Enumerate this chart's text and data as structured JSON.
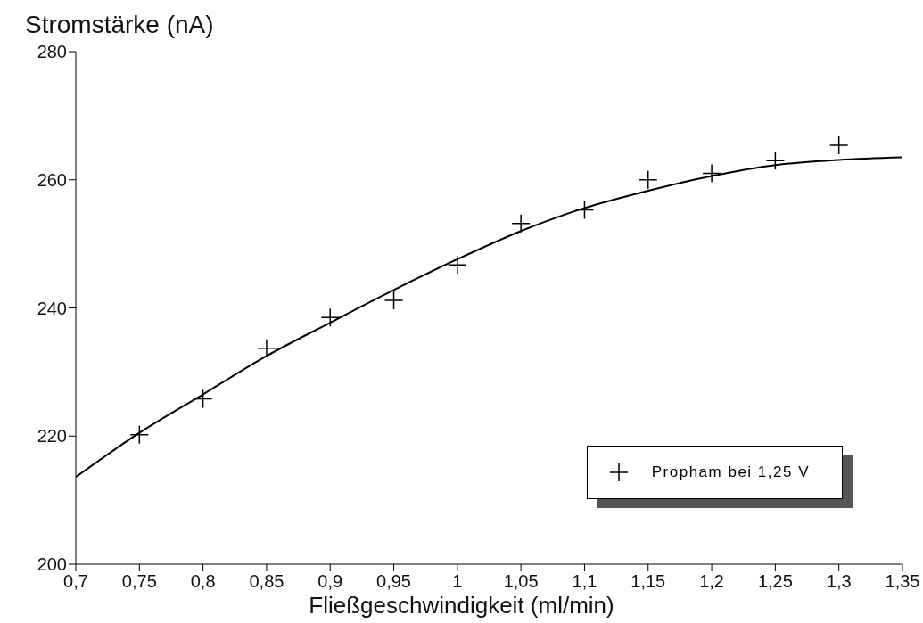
{
  "chart_data": {
    "type": "scatter",
    "ylabel": "Stromstärke (nA)",
    "xlabel": "Fließgeschwindigkeit (ml/min)",
    "xlim": [
      0.7,
      1.35
    ],
    "xticks": [
      {
        "value": 0.7,
        "label": "0,7"
      },
      {
        "value": 0.75,
        "label": "0,75"
      },
      {
        "value": 0.8,
        "label": "0,8"
      },
      {
        "value": 0.85,
        "label": "0,85"
      },
      {
        "value": 0.9,
        "label": "0,9"
      },
      {
        "value": 0.95,
        "label": "0,95"
      },
      {
        "value": 1,
        "label": "1"
      },
      {
        "value": 1.05,
        "label": "1,05"
      },
      {
        "value": 1.1,
        "label": "1,1"
      },
      {
        "value": 1.15,
        "label": "1,15"
      },
      {
        "value": 1.2,
        "label": "1,2"
      },
      {
        "value": 1.25,
        "label": "1,25"
      },
      {
        "value": 1.3,
        "label": "1,3"
      },
      {
        "value": 1.35,
        "label": "1,35"
      }
    ],
    "ylim": [
      200,
      280
    ],
    "yticks": [
      200,
      220,
      240,
      260,
      280
    ],
    "legend": "bottom right",
    "series": [
      {
        "name": "Propham bei 1,25 V",
        "type": "scatter",
        "marker": "cross",
        "color": "#000000",
        "x": [
          0.75,
          0.8,
          0.85,
          0.9,
          0.95,
          1.0,
          1.05,
          1.1,
          1.15,
          1.2,
          1.25,
          1.3
        ],
        "values": [
          220.2,
          225.8,
          233.7,
          238.5,
          241.2,
          246.7,
          253.2,
          255.3,
          260,
          261,
          263,
          265.4
        ]
      },
      {
        "type": "line",
        "marker": "none",
        "color": "#000000",
        "x": [
          0.7,
          0.75,
          0.8,
          0.85,
          0.9,
          0.95,
          1.0,
          1.05,
          1.1,
          1.15,
          1.2,
          1.25,
          1.3,
          1.35
        ],
        "values": [
          213.6,
          220.5,
          226.5,
          232.5,
          237.7,
          242.8,
          247.6,
          252,
          255.6,
          258.3,
          260.6,
          262.3,
          263.1,
          263.5
        ]
      }
    ]
  }
}
